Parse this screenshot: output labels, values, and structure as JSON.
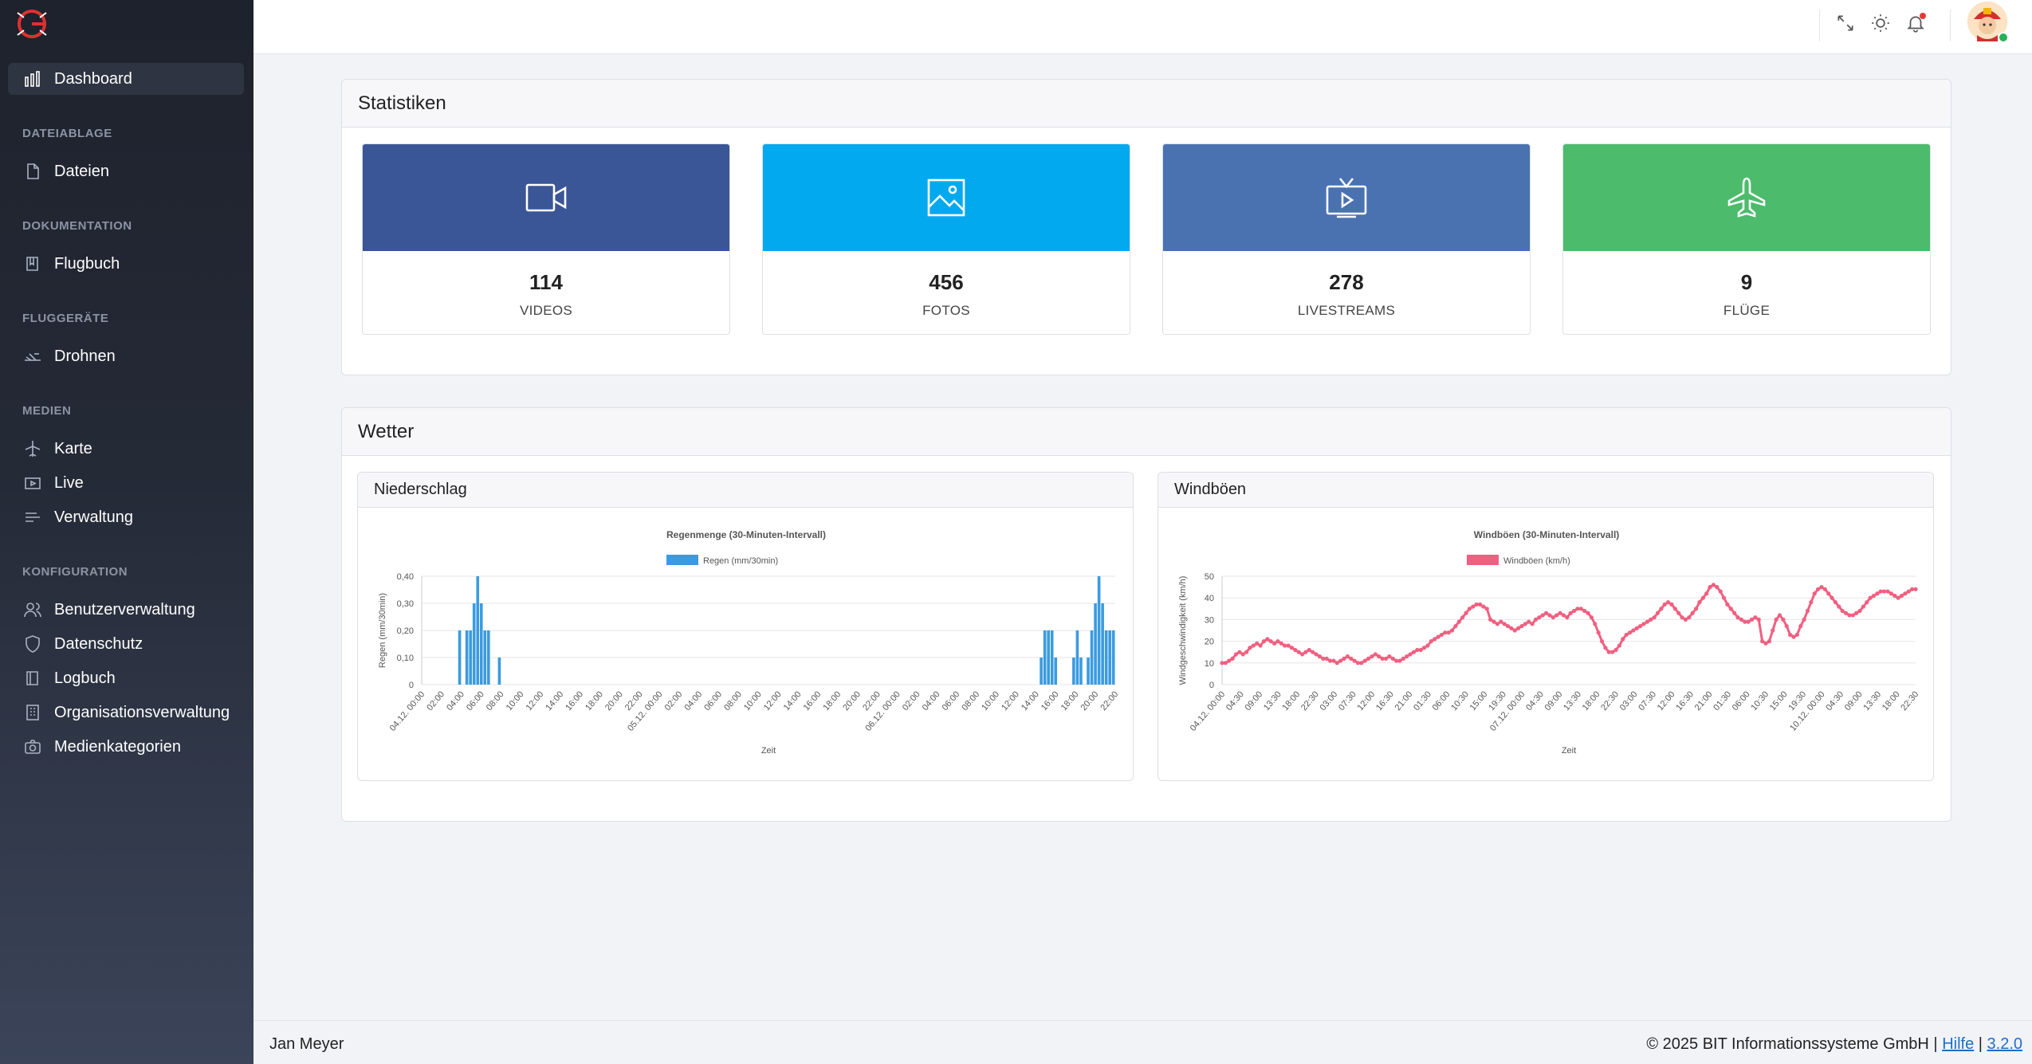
{
  "sidebar": {
    "logo_icon": "app-logo-icon",
    "items": {
      "dashboard": "Dashboard",
      "dateien": "Dateien",
      "flugbuch": "Flugbuch",
      "drohnen": "Drohnen",
      "karte": "Karte",
      "live": "Live",
      "verwaltung": "Verwaltung",
      "benutzerverwaltung": "Benutzerverwaltung",
      "datenschutz": "Datenschutz",
      "logbuch": "Logbuch",
      "organisationsverwaltung": "Organisationsverwaltung",
      "medienkategorien": "Medienkategorien"
    },
    "sections": {
      "dateiablage": "DATEIABLAGE",
      "dokumentation": "DOKUMENTATION",
      "fluggeraete": "FLUGGERÄTE",
      "medien": "MEDIEN",
      "konfiguration": "KONFIGURATION"
    }
  },
  "topbar": {
    "icons": [
      "fullscreen-icon",
      "theme-sun-icon",
      "bell-icon"
    ],
    "notification": true
  },
  "statistiken": {
    "title": "Statistiken",
    "tiles": [
      {
        "value": "114",
        "label": "VIDEOS",
        "icon": "video-camera-icon",
        "color": "#3a5697"
      },
      {
        "value": "456",
        "label": "FOTOS",
        "icon": "image-icon",
        "color": "#03a9ee"
      },
      {
        "value": "278",
        "label": "LIVESTREAMS",
        "icon": "tv-play-icon",
        "color": "#4a72b0"
      },
      {
        "value": "9",
        "label": "FLÜGE",
        "icon": "airplane-icon",
        "color": "#4cbb6c"
      }
    ]
  },
  "wetter": {
    "title": "Wetter",
    "niederschlag": {
      "title": "Niederschlag",
      "chart_data": {
        "type": "bar",
        "title": "Regenmenge (30-Minuten-Intervall)",
        "legend": "Regen (mm/30min)",
        "xlabel": "Zeit",
        "ylabel": "Regen (mm/30min)",
        "color": "#3b9be0",
        "ylim": [
          0,
          0.4
        ],
        "yticks": [
          "0",
          "0,10",
          "0,20",
          "0,30",
          "0,40"
        ],
        "xticks": [
          "04.12. 00:00",
          "02:00",
          "04:00",
          "06:00",
          "08:00",
          "10:00",
          "12:00",
          "14:00",
          "16:00",
          "18:00",
          "20:00",
          "22:00",
          "05.12. 00:00",
          "02:00",
          "04:00",
          "06:00",
          "08:00",
          "10:00",
          "12:00",
          "14:00",
          "16:00",
          "18:00",
          "20:00",
          "22:00",
          "06.12. 00:00",
          "02:00",
          "04:00",
          "06:00",
          "08:00",
          "10:00",
          "12:00",
          "14:00",
          "16:00",
          "18:00",
          "20:00",
          "22:00"
        ],
        "values": [
          0,
          0,
          0,
          0,
          0,
          0,
          0,
          0,
          0,
          0,
          0.2,
          0,
          0.2,
          0.2,
          0.3,
          0.4,
          0.3,
          0.2,
          0.2,
          0,
          0,
          0.1,
          0,
          0,
          0,
          0,
          0,
          0,
          0,
          0,
          0,
          0,
          0,
          0,
          0,
          0,
          0,
          0,
          0,
          0,
          0,
          0,
          0,
          0,
          0,
          0,
          0,
          0,
          0,
          0,
          0,
          0,
          0,
          0,
          0,
          0,
          0,
          0,
          0,
          0,
          0,
          0,
          0,
          0,
          0,
          0,
          0,
          0,
          0,
          0,
          0,
          0,
          0,
          0,
          0,
          0,
          0,
          0,
          0,
          0,
          0,
          0,
          0,
          0,
          0,
          0,
          0,
          0,
          0,
          0,
          0,
          0,
          0,
          0,
          0,
          0,
          0,
          0,
          0,
          0,
          0,
          0,
          0,
          0,
          0,
          0,
          0,
          0,
          0,
          0,
          0,
          0,
          0,
          0,
          0,
          0,
          0,
          0,
          0,
          0,
          0,
          0,
          0,
          0,
          0,
          0,
          0,
          0,
          0,
          0,
          0,
          0,
          0,
          0,
          0,
          0,
          0,
          0,
          0,
          0,
          0,
          0,
          0,
          0,
          0,
          0,
          0,
          0,
          0,
          0,
          0,
          0,
          0,
          0,
          0,
          0,
          0,
          0,
          0,
          0,
          0,
          0,
          0,
          0,
          0,
          0,
          0,
          0,
          0,
          0,
          0,
          0.1,
          0.2,
          0.2,
          0.2,
          0.1,
          0,
          0,
          0,
          0,
          0.1,
          0.2,
          0.1,
          0,
          0.1,
          0.2,
          0.3,
          0.4,
          0.3,
          0.2,
          0.2,
          0.2
        ]
      }
    },
    "windboeen": {
      "title": "Windböen",
      "chart_data": {
        "type": "line",
        "title": "Windböen (30-Minuten-Intervall)",
        "legend": "Windböen (km/h)",
        "xlabel": "Zeit",
        "ylabel": "Windgeschwindigkeit (km/h)",
        "color": "#f06080",
        "ylim": [
          0,
          50
        ],
        "yticks": [
          "0",
          "10",
          "20",
          "30",
          "40",
          "50"
        ],
        "xticks": [
          "04.12. 00:00",
          "04:30",
          "09:00",
          "13:30",
          "18:00",
          "22:30",
          "03:00",
          "07:30",
          "12:00",
          "16:30",
          "21:00",
          "01:30",
          "06:00",
          "10:30",
          "15:00",
          "19:30",
          "07.12. 00:00",
          "04:30",
          "09:00",
          "13:30",
          "18:00",
          "22:30",
          "03:00",
          "07:30",
          "12:00",
          "16:30",
          "21:00",
          "01:30",
          "06:00",
          "10:30",
          "15:00",
          "19:30",
          "10.12. 00:00",
          "04:30",
          "09:00",
          "13:30",
          "18:00",
          "22:30"
        ],
        "values": [
          10,
          10,
          11,
          12,
          14,
          15,
          14,
          15,
          17,
          18,
          19,
          18,
          20,
          21,
          20,
          19,
          20,
          19,
          18,
          18,
          17,
          16,
          15,
          14,
          15,
          16,
          15,
          14,
          13,
          12,
          12,
          11,
          11,
          10,
          11,
          12,
          13,
          12,
          11,
          10,
          10,
          11,
          12,
          13,
          14,
          13,
          12,
          12,
          13,
          12,
          11,
          11,
          12,
          13,
          14,
          15,
          16,
          16,
          17,
          18,
          20,
          21,
          22,
          23,
          24,
          24,
          25,
          27,
          29,
          31,
          33,
          35,
          36,
          37,
          37,
          36,
          35,
          30,
          29,
          28,
          29,
          28,
          27,
          26,
          25,
          26,
          27,
          28,
          29,
          28,
          30,
          31,
          32,
          33,
          32,
          31,
          32,
          33,
          32,
          31,
          33,
          34,
          35,
          35,
          34,
          33,
          31,
          28,
          24,
          20,
          17,
          15,
          15,
          16,
          18,
          21,
          23,
          24,
          25,
          26,
          27,
          28,
          29,
          30,
          31,
          33,
          35,
          37,
          38,
          37,
          35,
          33,
          31,
          30,
          31,
          33,
          35,
          38,
          40,
          42,
          45,
          46,
          45,
          43,
          40,
          37,
          35,
          33,
          31,
          30,
          29,
          29,
          30,
          31,
          30,
          20,
          19,
          20,
          25,
          30,
          32,
          30,
          27,
          23,
          22,
          23,
          27,
          30,
          34,
          38,
          42,
          44,
          45,
          44,
          42,
          40,
          38,
          36,
          34,
          33,
          32,
          32,
          33,
          34,
          36,
          38,
          40,
          41,
          42,
          43,
          43,
          43,
          42,
          41,
          40,
          41,
          42,
          43,
          44,
          44
        ]
      }
    }
  },
  "footer": {
    "user": "Jan Meyer",
    "copyright": "© 2025 BIT Informationssysteme GmbH | ",
    "help": "Hilfe",
    "sep": " | ",
    "version": "3.2.0"
  }
}
